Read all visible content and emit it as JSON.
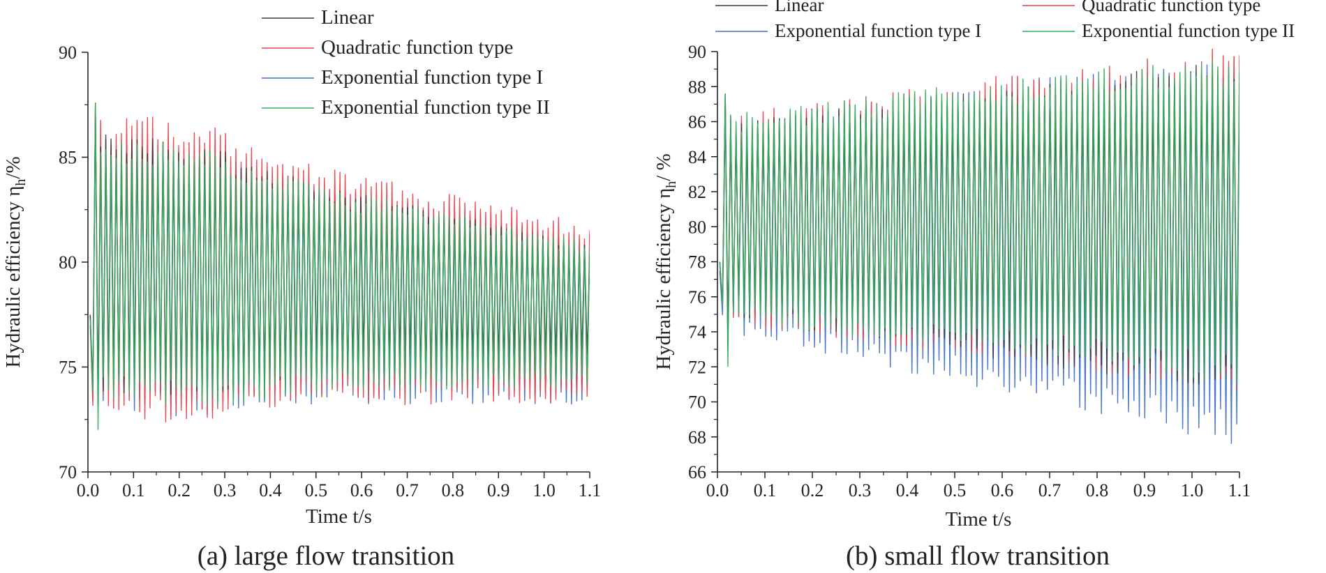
{
  "chart_data": [
    {
      "type": "line",
      "caption": "(a) large flow transition",
      "xlabel": "Time t/s",
      "ylabel_main": "Hydraulic efficiency η",
      "ylabel_sub": "h",
      "ylabel_tail": "/%",
      "xlim": [
        0.0,
        1.1
      ],
      "ylim": [
        70,
        90
      ],
      "xticks": [
        "0.0",
        "0.1",
        "0.2",
        "0.3",
        "0.4",
        "0.5",
        "0.6",
        "0.7",
        "0.8",
        "0.9",
        "1.0",
        "1.1"
      ],
      "yticks": [
        "70",
        "75",
        "80",
        "85",
        "90"
      ],
      "legend": {
        "placement": "top",
        "columns": 1
      },
      "series": [
        {
          "name": "Linear",
          "color": "#3a3a3a",
          "mean_start": 80.0,
          "mean_end": 78.0,
          "amp_start": 5.5,
          "amp_end": 2.6
        },
        {
          "name": "Quadratic function type",
          "color": "#e8414a",
          "mean_start": 80.0,
          "mean_end": 77.6,
          "amp_start": 6.3,
          "amp_end": 3.9
        },
        {
          "name": "Exponential function type I",
          "color": "#3d6fc8",
          "mean_start": 79.5,
          "mean_end": 77.3,
          "amp_start": 5.6,
          "amp_end": 3.7
        },
        {
          "name": "Exponential function type II",
          "color": "#2fae5e",
          "mean_start": 79.8,
          "mean_end": 77.5,
          "amp_start": 5.5,
          "amp_end": 3.2
        }
      ],
      "cycles": 96,
      "start_spike": 87.6,
      "start_dip": 72.0
    },
    {
      "type": "line",
      "caption": "(b) small flow transition",
      "xlabel": "Time  t/s",
      "ylabel_main": "Hydraulic efficiency  η",
      "ylabel_sub": "h",
      "ylabel_tail": "/ %",
      "xlim": [
        0.0,
        1.1
      ],
      "ylim": [
        66,
        90
      ],
      "xticks": [
        "0.0",
        "0.1",
        "0.2",
        "0.3",
        "0.4",
        "0.5",
        "0.6",
        "0.7",
        "0.8",
        "0.9",
        "1.0",
        "1.1"
      ],
      "yticks": [
        "66",
        "68",
        "70",
        "72",
        "74",
        "76",
        "78",
        "80",
        "82",
        "84",
        "86",
        "88",
        "90"
      ],
      "legend": {
        "placement": "top",
        "columns": 2
      },
      "series": [
        {
          "name": "Linear",
          "color": "#3a3a3a",
          "mean_start": 80.5,
          "mean_end": 80.0,
          "amp_start": 5.2,
          "amp_end": 8.6
        },
        {
          "name": "Quadratic function type",
          "color": "#e8414a",
          "mean_start": 80.5,
          "mean_end": 80.5,
          "amp_start": 5.4,
          "amp_end": 9.0
        },
        {
          "name": "Exponential function type I",
          "color": "#3d6fc8",
          "mean_start": 80.0,
          "mean_end": 78.8,
          "amp_start": 5.4,
          "amp_end": 10.2
        },
        {
          "name": "Exponential function type II",
          "color": "#2fae5e",
          "mean_start": 80.5,
          "mean_end": 80.5,
          "amp_start": 5.3,
          "amp_end": 8.7
        }
      ],
      "cycles": 96,
      "start_spike": 87.6,
      "start_dip": 72.0
    }
  ]
}
